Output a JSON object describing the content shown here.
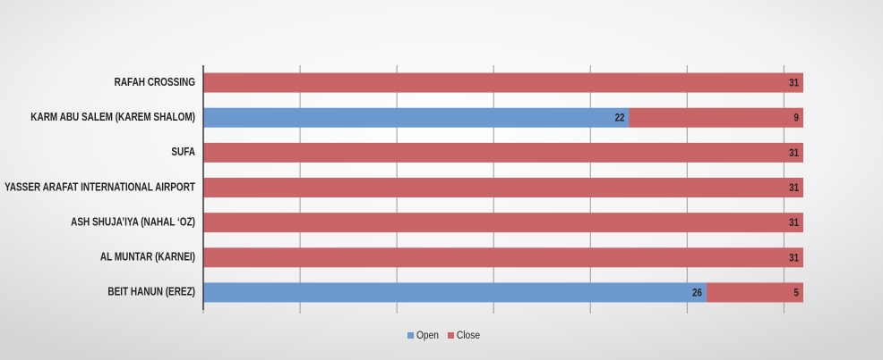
{
  "chart_data": {
    "type": "stacked-bar-horizontal",
    "categories": [
      "RAFAH CROSSING",
      "KARM ABU SALEM (KAREM SHALOM)",
      "SUFA",
      "YASSER ARAFAT INTERNATIONAL AIRPORT",
      "ASH SHUJA’IYA (NAHAL ‘OZ)",
      "AL MUNTAR (KARNEI)",
      "BEIT HANUN (EREZ)"
    ],
    "series": [
      {
        "name": "Open",
        "color": "#6e99cf",
        "values": [
          0,
          22,
          0,
          0,
          0,
          0,
          26
        ]
      },
      {
        "name": "Close",
        "color": "#c96566",
        "values": [
          31,
          9,
          31,
          31,
          31,
          31,
          5
        ]
      }
    ],
    "xlim": [
      0,
      31
    ],
    "xticks": [
      0,
      5,
      10,
      15,
      20,
      25,
      30
    ],
    "grid": true,
    "legend": "bottom"
  }
}
